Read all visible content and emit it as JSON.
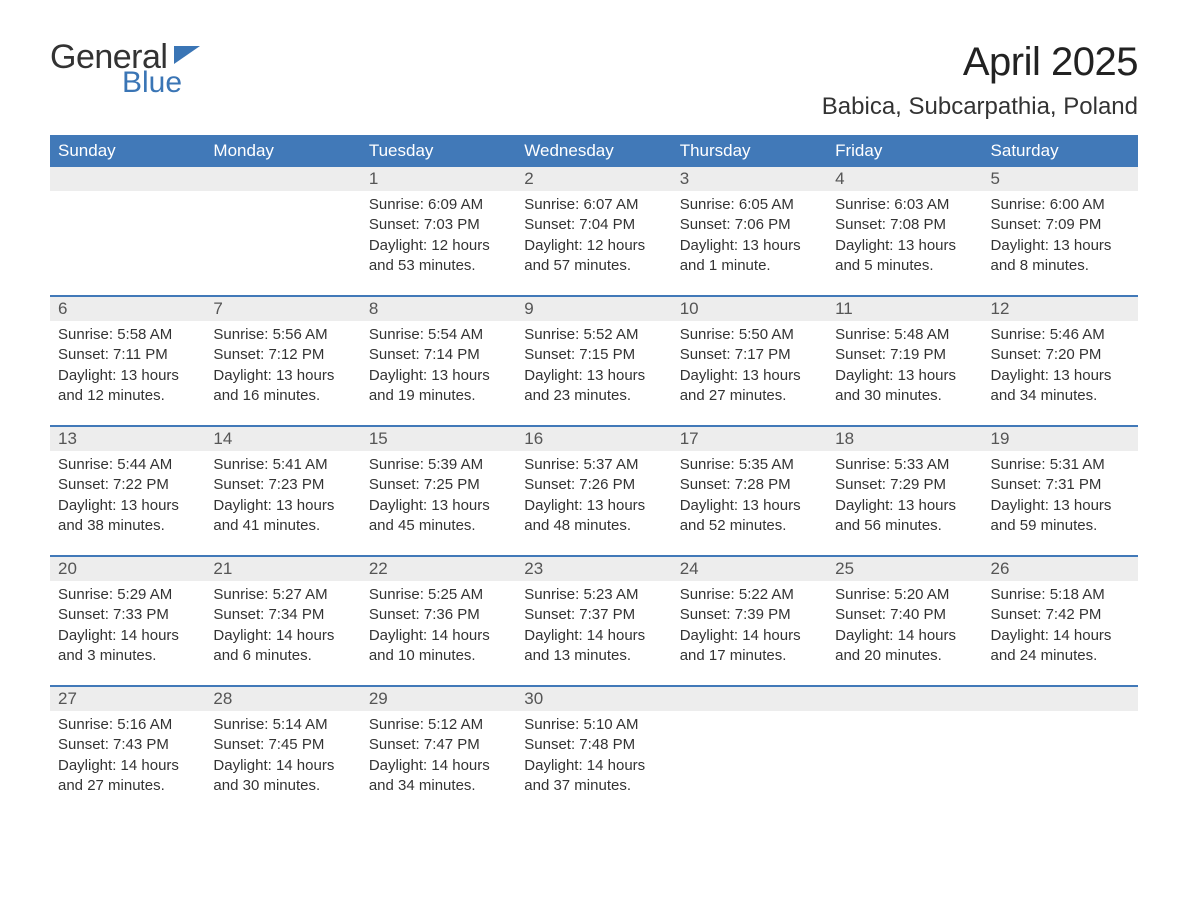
{
  "brand": {
    "general": "General",
    "blue": "Blue"
  },
  "title": "April 2025",
  "location": "Babica, Subcarpathia, Poland",
  "colors": {
    "accent": "#4179b8",
    "daynum_bg": "#ededed",
    "text": "#333333",
    "title_text": "#222222",
    "background": "#ffffff"
  },
  "typography": {
    "title_fontsize": 40,
    "location_fontsize": 24,
    "dayhead_fontsize": 17,
    "cell_fontsize": 15
  },
  "day_headers": [
    "Sunday",
    "Monday",
    "Tuesday",
    "Wednesday",
    "Thursday",
    "Friday",
    "Saturday"
  ],
  "weeks": [
    [
      {
        "num": "",
        "lines": []
      },
      {
        "num": "",
        "lines": []
      },
      {
        "num": "1",
        "lines": [
          "Sunrise: 6:09 AM",
          "Sunset: 7:03 PM",
          "Daylight: 12 hours and 53 minutes."
        ]
      },
      {
        "num": "2",
        "lines": [
          "Sunrise: 6:07 AM",
          "Sunset: 7:04 PM",
          "Daylight: 12 hours and 57 minutes."
        ]
      },
      {
        "num": "3",
        "lines": [
          "Sunrise: 6:05 AM",
          "Sunset: 7:06 PM",
          "Daylight: 13 hours and 1 minute."
        ]
      },
      {
        "num": "4",
        "lines": [
          "Sunrise: 6:03 AM",
          "Sunset: 7:08 PM",
          "Daylight: 13 hours and 5 minutes."
        ]
      },
      {
        "num": "5",
        "lines": [
          "Sunrise: 6:00 AM",
          "Sunset: 7:09 PM",
          "Daylight: 13 hours and 8 minutes."
        ]
      }
    ],
    [
      {
        "num": "6",
        "lines": [
          "Sunrise: 5:58 AM",
          "Sunset: 7:11 PM",
          "Daylight: 13 hours and 12 minutes."
        ]
      },
      {
        "num": "7",
        "lines": [
          "Sunrise: 5:56 AM",
          "Sunset: 7:12 PM",
          "Daylight: 13 hours and 16 minutes."
        ]
      },
      {
        "num": "8",
        "lines": [
          "Sunrise: 5:54 AM",
          "Sunset: 7:14 PM",
          "Daylight: 13 hours and 19 minutes."
        ]
      },
      {
        "num": "9",
        "lines": [
          "Sunrise: 5:52 AM",
          "Sunset: 7:15 PM",
          "Daylight: 13 hours and 23 minutes."
        ]
      },
      {
        "num": "10",
        "lines": [
          "Sunrise: 5:50 AM",
          "Sunset: 7:17 PM",
          "Daylight: 13 hours and 27 minutes."
        ]
      },
      {
        "num": "11",
        "lines": [
          "Sunrise: 5:48 AM",
          "Sunset: 7:19 PM",
          "Daylight: 13 hours and 30 minutes."
        ]
      },
      {
        "num": "12",
        "lines": [
          "Sunrise: 5:46 AM",
          "Sunset: 7:20 PM",
          "Daylight: 13 hours and 34 minutes."
        ]
      }
    ],
    [
      {
        "num": "13",
        "lines": [
          "Sunrise: 5:44 AM",
          "Sunset: 7:22 PM",
          "Daylight: 13 hours and 38 minutes."
        ]
      },
      {
        "num": "14",
        "lines": [
          "Sunrise: 5:41 AM",
          "Sunset: 7:23 PM",
          "Daylight: 13 hours and 41 minutes."
        ]
      },
      {
        "num": "15",
        "lines": [
          "Sunrise: 5:39 AM",
          "Sunset: 7:25 PM",
          "Daylight: 13 hours and 45 minutes."
        ]
      },
      {
        "num": "16",
        "lines": [
          "Sunrise: 5:37 AM",
          "Sunset: 7:26 PM",
          "Daylight: 13 hours and 48 minutes."
        ]
      },
      {
        "num": "17",
        "lines": [
          "Sunrise: 5:35 AM",
          "Sunset: 7:28 PM",
          "Daylight: 13 hours and 52 minutes."
        ]
      },
      {
        "num": "18",
        "lines": [
          "Sunrise: 5:33 AM",
          "Sunset: 7:29 PM",
          "Daylight: 13 hours and 56 minutes."
        ]
      },
      {
        "num": "19",
        "lines": [
          "Sunrise: 5:31 AM",
          "Sunset: 7:31 PM",
          "Daylight: 13 hours and 59 minutes."
        ]
      }
    ],
    [
      {
        "num": "20",
        "lines": [
          "Sunrise: 5:29 AM",
          "Sunset: 7:33 PM",
          "Daylight: 14 hours and 3 minutes."
        ]
      },
      {
        "num": "21",
        "lines": [
          "Sunrise: 5:27 AM",
          "Sunset: 7:34 PM",
          "Daylight: 14 hours and 6 minutes."
        ]
      },
      {
        "num": "22",
        "lines": [
          "Sunrise: 5:25 AM",
          "Sunset: 7:36 PM",
          "Daylight: 14 hours and 10 minutes."
        ]
      },
      {
        "num": "23",
        "lines": [
          "Sunrise: 5:23 AM",
          "Sunset: 7:37 PM",
          "Daylight: 14 hours and 13 minutes."
        ]
      },
      {
        "num": "24",
        "lines": [
          "Sunrise: 5:22 AM",
          "Sunset: 7:39 PM",
          "Daylight: 14 hours and 17 minutes."
        ]
      },
      {
        "num": "25",
        "lines": [
          "Sunrise: 5:20 AM",
          "Sunset: 7:40 PM",
          "Daylight: 14 hours and 20 minutes."
        ]
      },
      {
        "num": "26",
        "lines": [
          "Sunrise: 5:18 AM",
          "Sunset: 7:42 PM",
          "Daylight: 14 hours and 24 minutes."
        ]
      }
    ],
    [
      {
        "num": "27",
        "lines": [
          "Sunrise: 5:16 AM",
          "Sunset: 7:43 PM",
          "Daylight: 14 hours and 27 minutes."
        ]
      },
      {
        "num": "28",
        "lines": [
          "Sunrise: 5:14 AM",
          "Sunset: 7:45 PM",
          "Daylight: 14 hours and 30 minutes."
        ]
      },
      {
        "num": "29",
        "lines": [
          "Sunrise: 5:12 AM",
          "Sunset: 7:47 PM",
          "Daylight: 14 hours and 34 minutes."
        ]
      },
      {
        "num": "30",
        "lines": [
          "Sunrise: 5:10 AM",
          "Sunset: 7:48 PM",
          "Daylight: 14 hours and 37 minutes."
        ]
      },
      {
        "num": "",
        "lines": []
      },
      {
        "num": "",
        "lines": []
      },
      {
        "num": "",
        "lines": []
      }
    ]
  ]
}
